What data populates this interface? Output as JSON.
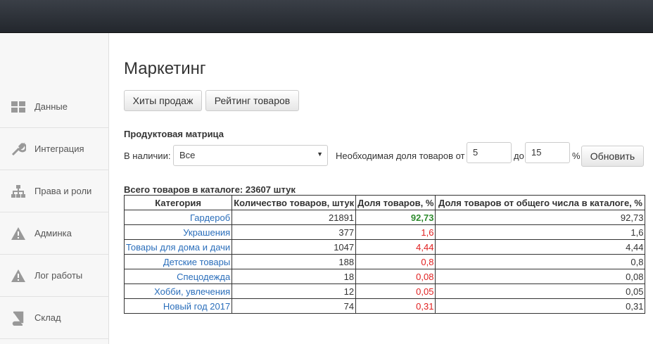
{
  "sidebar": {
    "items": [
      "Данные",
      "Интеграция",
      "Права и роли",
      "Админка",
      "Лог работы",
      "Склад"
    ]
  },
  "page": {
    "title": "Маркетинг",
    "tabs": [
      "Хиты продаж",
      "Рейтинг товаров"
    ],
    "section_title": "Продуктовая матрица",
    "filter": {
      "availability_label": "В наличии:",
      "availability_value": "Все",
      "share_label": "Необходимая доля товаров от",
      "share_from": "5",
      "to_label": "до",
      "share_to": "15",
      "percent_sign": "%",
      "refresh_button": "Обновить"
    },
    "total": "Всего товаров в каталоге: 23607 штук"
  },
  "table": {
    "headers": [
      "Категория",
      "Количество товаров, штук",
      "Доля товаров, %",
      "Доля товаров от общего числа в каталоге, %"
    ],
    "rows": [
      [
        "Гардероб",
        "21891",
        "92,73",
        "92,73"
      ],
      [
        "Украшения",
        "377",
        "1,6",
        "1,6"
      ],
      [
        "Товары для дома и дачи",
        "1047",
        "4,44",
        "4,44"
      ],
      [
        "Детские товары",
        "188",
        "0,8",
        "0,8"
      ],
      [
        "Спецодежда",
        "18",
        "0,08",
        "0,08"
      ],
      [
        "Хобби, увлечения",
        "12",
        "0,05",
        "0,05"
      ],
      [
        "Новый год 2017",
        "74",
        "0,31",
        "0,31"
      ]
    ]
  }
}
